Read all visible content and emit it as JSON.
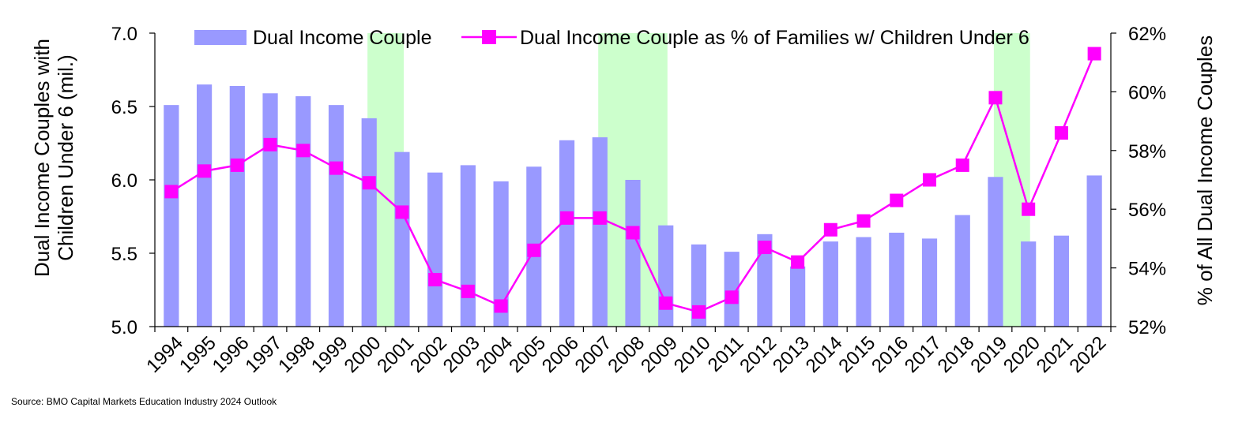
{
  "source": "Source: BMO Capital Markets Education Industry 2024 Outlook",
  "colors": {
    "bars": "#9999ff",
    "line": "#ff00ff",
    "recession": "#ccffcc"
  },
  "chart_data": {
    "type": "bar",
    "x": [
      "1994",
      "1995",
      "1996",
      "1997",
      "1998",
      "1999",
      "2000",
      "2001",
      "2002",
      "2003",
      "2004",
      "2005",
      "2006",
      "2007",
      "2008",
      "2009",
      "2010",
      "2011",
      "2012",
      "2013",
      "2014",
      "2015",
      "2016",
      "2017",
      "2018",
      "2019",
      "2020",
      "2021",
      "2022"
    ],
    "left_axis": {
      "label": "Dual Income Couples with Children Under 6 (mil.)",
      "label_lines": [
        "Dual Income Couples with",
        "Children Under 6 (mil.)"
      ],
      "ylim": [
        5.0,
        7.0
      ],
      "ticks": [
        "5.0",
        "5.5",
        "6.0",
        "6.5",
        "7.0"
      ]
    },
    "right_axis": {
      "label": "% of All Dual Income Couples",
      "ylim": [
        52,
        62
      ],
      "ticks": [
        "52%",
        "54%",
        "56%",
        "58%",
        "60%",
        "62%"
      ]
    },
    "series": [
      {
        "name": "Dual Income Couple",
        "type": "bar",
        "axis": "left",
        "values": [
          6.51,
          6.65,
          6.64,
          6.59,
          6.57,
          6.51,
          6.42,
          6.19,
          6.05,
          6.1,
          5.99,
          6.09,
          6.27,
          6.29,
          6.0,
          5.69,
          5.56,
          5.51,
          5.63,
          5.41,
          5.58,
          5.61,
          5.64,
          5.6,
          5.76,
          6.02,
          5.58,
          5.62,
          6.03
        ]
      },
      {
        "name": "Dual Income Couple as % of Families w/ Children Under 6",
        "type": "line",
        "axis": "right",
        "marker": "square",
        "values": [
          56.6,
          57.3,
          57.5,
          58.2,
          58.0,
          57.4,
          56.9,
          55.9,
          53.6,
          53.2,
          52.7,
          54.6,
          55.7,
          55.7,
          55.2,
          52.8,
          52.5,
          53.0,
          54.7,
          54.2,
          55.3,
          55.6,
          56.3,
          57.0,
          57.5,
          59.8,
          56.0,
          58.6,
          61.3
        ]
      }
    ],
    "recession_shading": [
      {
        "start": "2000",
        "end": "2001"
      },
      {
        "start": "2007",
        "end": "2009"
      },
      {
        "start": "2019",
        "end": "2020"
      }
    ],
    "legend": "top"
  }
}
